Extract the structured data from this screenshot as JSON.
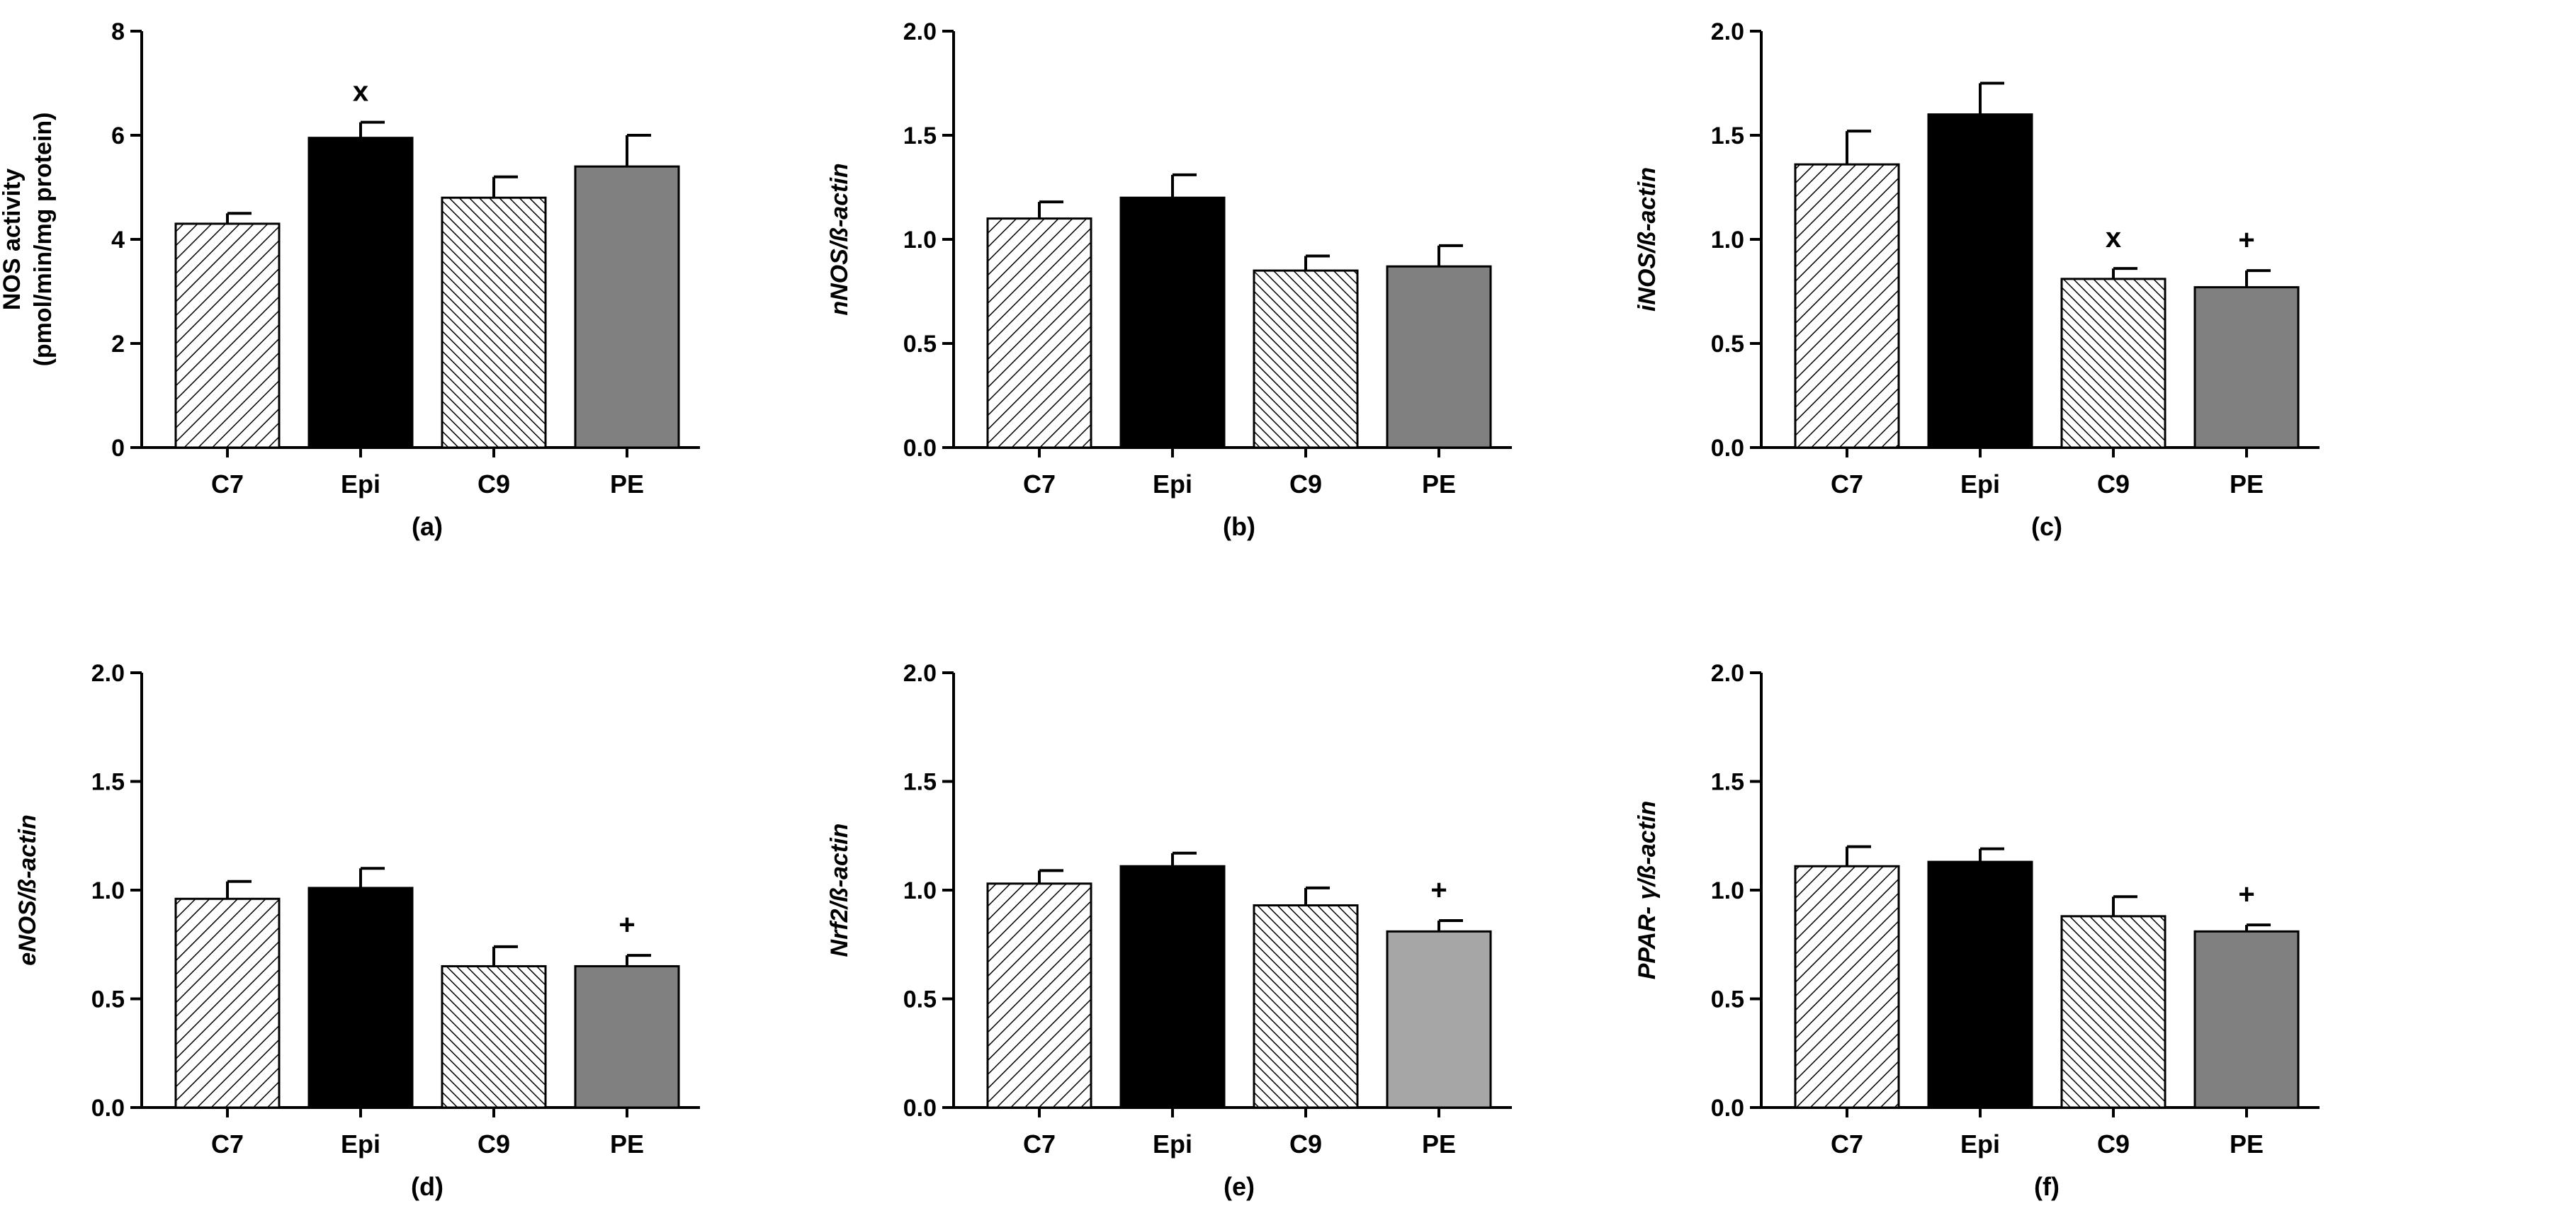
{
  "chart_data": [
    {
      "panel": "(a)",
      "type": "bar",
      "ylabel_lines": [
        "NOS activity",
        "(pmol/min/mg protein)"
      ],
      "ylabel_italic": false,
      "ylim": [
        0,
        8
      ],
      "yticks": [
        0,
        2,
        4,
        6,
        8
      ],
      "ytick_labels": [
        "0",
        "2",
        "4",
        "6",
        "8"
      ],
      "categories": [
        "C7",
        "Epi",
        "C9",
        "PE"
      ],
      "values": [
        4.3,
        5.95,
        4.8,
        5.4
      ],
      "errors": [
        0.2,
        0.3,
        0.4,
        0.6
      ],
      "fills": [
        "hatch",
        "#000000",
        "hatch-dense",
        "#808080"
      ],
      "annotations": [
        "",
        "x",
        "",
        ""
      ]
    },
    {
      "panel": "(b)",
      "type": "bar",
      "ylabel_lines": [
        "nNOS/ß-actin"
      ],
      "ylabel_italic": true,
      "ylim": [
        0,
        2
      ],
      "yticks": [
        0,
        0.5,
        1,
        1.5,
        2
      ],
      "ytick_labels": [
        "0.0",
        "0.5",
        "1.0",
        "1.5",
        "2.0"
      ],
      "categories": [
        "C7",
        "Epi",
        "C9",
        "PE"
      ],
      "values": [
        1.1,
        1.2,
        0.85,
        0.87
      ],
      "errors": [
        0.08,
        0.11,
        0.07,
        0.1
      ],
      "fills": [
        "hatch",
        "#000000",
        "hatch-dense",
        "#808080"
      ],
      "annotations": [
        "",
        "",
        "",
        ""
      ]
    },
    {
      "panel": "(c)",
      "type": "bar",
      "ylabel_lines": [
        "iNOS/ß-actin"
      ],
      "ylabel_italic": true,
      "ylim": [
        0,
        2
      ],
      "yticks": [
        0,
        0.5,
        1,
        1.5,
        2
      ],
      "ytick_labels": [
        "0.0",
        "0.5",
        "1.0",
        "1.5",
        "2.0"
      ],
      "categories": [
        "C7",
        "Epi",
        "C9",
        "PE"
      ],
      "values": [
        1.36,
        1.6,
        0.81,
        0.77
      ],
      "errors": [
        0.16,
        0.15,
        0.05,
        0.08
      ],
      "fills": [
        "hatch",
        "#000000",
        "hatch-dense",
        "#808080"
      ],
      "annotations": [
        "",
        "",
        "x",
        "+"
      ]
    },
    {
      "panel": "(d)",
      "type": "bar",
      "ylabel_lines": [
        "eNOS/ß-actin"
      ],
      "ylabel_italic": true,
      "ylim": [
        0,
        2
      ],
      "yticks": [
        0,
        0.5,
        1,
        1.5,
        2
      ],
      "ytick_labels": [
        "0.0",
        "0.5",
        "1.0",
        "1.5",
        "2.0"
      ],
      "categories": [
        "C7",
        "Epi",
        "C9",
        "PE"
      ],
      "values": [
        0.96,
        1.01,
        0.65,
        0.65
      ],
      "errors": [
        0.08,
        0.09,
        0.09,
        0.05
      ],
      "fills": [
        "hatch",
        "#000000",
        "hatch-dense",
        "#808080"
      ],
      "annotations": [
        "",
        "",
        "",
        "+"
      ]
    },
    {
      "panel": "(e)",
      "type": "bar",
      "ylabel_lines": [
        "Nrf2/ß-actin"
      ],
      "ylabel_italic": true,
      "ylim": [
        0,
        2
      ],
      "yticks": [
        0,
        0.5,
        1,
        1.5,
        2
      ],
      "ytick_labels": [
        "0.0",
        "0.5",
        "1.0",
        "1.5",
        "2.0"
      ],
      "categories": [
        "C7",
        "Epi",
        "C9",
        "PE"
      ],
      "values": [
        1.03,
        1.11,
        0.93,
        0.81
      ],
      "errors": [
        0.06,
        0.06,
        0.08,
        0.05
      ],
      "fills": [
        "hatch",
        "#000000",
        "hatch-dense",
        "#a6a6a6"
      ],
      "annotations": [
        "",
        "",
        "",
        "+"
      ]
    },
    {
      "panel": "(f)",
      "type": "bar",
      "ylabel_lines": [
        "PPAR- γ/ß-actin"
      ],
      "ylabel_italic": true,
      "ylim": [
        0,
        2
      ],
      "yticks": [
        0,
        0.5,
        1,
        1.5,
        2
      ],
      "ytick_labels": [
        "0.0",
        "0.5",
        "1.0",
        "1.5",
        "2.0"
      ],
      "categories": [
        "C7",
        "Epi",
        "C9",
        "PE"
      ],
      "values": [
        1.11,
        1.13,
        0.88,
        0.81
      ],
      "errors": [
        0.09,
        0.06,
        0.09,
        0.03
      ],
      "fills": [
        "hatch",
        "#000000",
        "hatch-dense",
        "#808080"
      ],
      "annotations": [
        "",
        "",
        "",
        "+"
      ]
    }
  ]
}
